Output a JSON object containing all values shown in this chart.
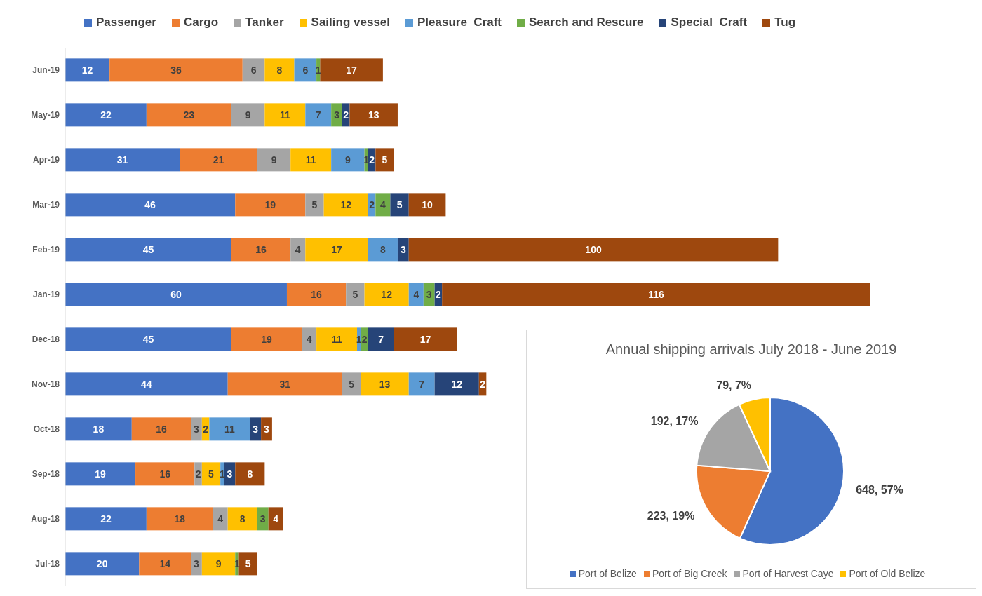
{
  "chart_data": [
    {
      "type": "bar",
      "orientation": "horizontal",
      "stacked": true,
      "categories": [
        "Jun-19",
        "May-19",
        "Apr-19",
        "Mar-19",
        "Feb-19",
        "Jan-19",
        "Dec-18",
        "Nov-18",
        "Oct-18",
        "Sep-18",
        "Aug-18",
        "Jul-18"
      ],
      "series": [
        {
          "name": "Passenger",
          "color": "#4472c4",
          "values": [
            12,
            22,
            31,
            46,
            45,
            60,
            45,
            44,
            18,
            19,
            22,
            20
          ]
        },
        {
          "name": "Cargo",
          "color": "#ed7d31",
          "values": [
            36,
            23,
            21,
            19,
            16,
            16,
            19,
            31,
            16,
            16,
            18,
            14
          ]
        },
        {
          "name": "Tanker",
          "color": "#a5a5a5",
          "values": [
            6,
            9,
            9,
            5,
            4,
            5,
            4,
            5,
            3,
            2,
            4,
            3
          ]
        },
        {
          "name": "Sailing vessel",
          "color": "#ffc000",
          "values": [
            8,
            11,
            11,
            12,
            17,
            12,
            11,
            13,
            2,
            5,
            8,
            9
          ]
        },
        {
          "name": "Pleasure  Craft",
          "color": "#5b9bd5",
          "values": [
            6,
            7,
            9,
            2,
            8,
            4,
            1,
            7,
            11,
            1,
            null,
            null
          ]
        },
        {
          "name": "Search and Rescure",
          "color": "#70ad47",
          "values": [
            1,
            3,
            1,
            4,
            null,
            3,
            2,
            null,
            null,
            null,
            3,
            1
          ]
        },
        {
          "name": "Special  Craft",
          "color": "#264478",
          "values": [
            null,
            2,
            2,
            5,
            3,
            2,
            7,
            12,
            3,
            3,
            null,
            null
          ]
        },
        {
          "name": "Tug",
          "color": "#9e480e",
          "values": [
            17,
            13,
            5,
            10,
            100,
            116,
            17,
            2,
            3,
            8,
            4,
            5
          ]
        }
      ],
      "data_labels": true,
      "legend": "top",
      "tick_labels": "y"
    },
    {
      "type": "pie",
      "title": "Annual shipping arrivals July 2018 - June 2019",
      "categories": [
        "Port of Belize",
        "Port of Big Creek",
        "Port of Harvest Caye",
        "Port of Old Belize"
      ],
      "values": [
        648,
        223,
        192,
        79
      ],
      "colors": [
        "#4472c4",
        "#ed7d31",
        "#a5a5a5",
        "#ffc000"
      ],
      "value_labels": [
        "648, 57%",
        "223, 19%",
        "192, 17%",
        "79, 7%"
      ],
      "legend": "bottom"
    }
  ]
}
